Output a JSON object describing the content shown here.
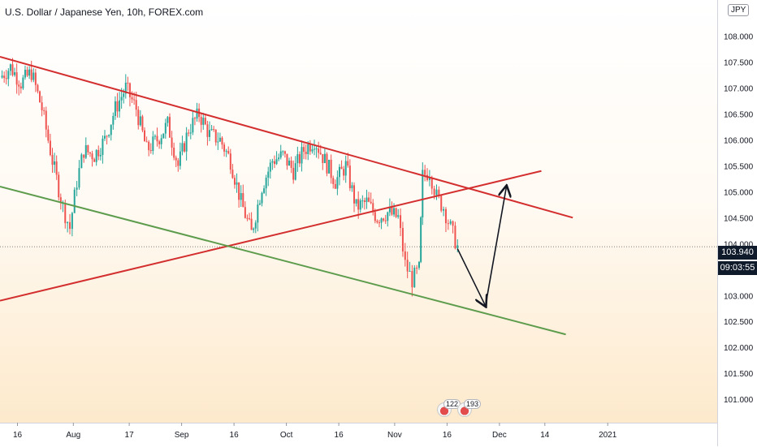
{
  "title": "U.S. Dollar / Japanese Yen, 10h, FOREX.com",
  "currency_badge": "JPY",
  "price_tag": "103.940",
  "time_tag": "09:03:55",
  "events": [
    {
      "count": "122"
    },
    {
      "count": "193"
    }
  ],
  "colors": {
    "up": "#26a69a",
    "down": "#ef5350",
    "resistance": "#d32f2f",
    "support": "#5d9c4c",
    "arrow": "#131722"
  },
  "chart_data": {
    "type": "candlestick",
    "title": "U.S. Dollar / Japanese Yen, 10h, FOREX.com",
    "ylim": [
      100.55,
      108.6
    ],
    "y_ticks": [
      101.0,
      101.5,
      102.0,
      102.5,
      103.0,
      103.5,
      104.0,
      104.5,
      105.0,
      105.5,
      106.0,
      106.5,
      107.0,
      107.5,
      108.0
    ],
    "x_ticks": [
      "16",
      "Aug",
      "17",
      "Sep",
      "16",
      "Oct",
      "16",
      "Nov",
      "16",
      "Dec",
      "14",
      "2021"
    ],
    "last_price": 103.94,
    "close_path": [
      [
        "Jul 11",
        107.2
      ],
      [
        "Jul 14",
        107.4
      ],
      [
        "Jul 17",
        107.1
      ],
      [
        "Jul 20",
        107.3
      ],
      [
        "Jul 23",
        106.6
      ],
      [
        "Jul 26",
        105.6
      ],
      [
        "Jul 29",
        104.7
      ],
      [
        "Jul 31",
        104.3
      ],
      [
        "Aug 2",
        105.2
      ],
      [
        "Aug 4",
        105.8
      ],
      [
        "Aug 7",
        105.7
      ],
      [
        "Aug 10",
        106.0
      ],
      [
        "Aug 13",
        106.6
      ],
      [
        "Aug 16",
        107.0
      ],
      [
        "Aug 19",
        106.6
      ],
      [
        "Aug 22",
        105.8
      ],
      [
        "Aug 25",
        106.0
      ],
      [
        "Aug 28",
        106.3
      ],
      [
        "Aug 31",
        105.5
      ],
      [
        "Sep 3",
        106.2
      ],
      [
        "Sep 6",
        106.5
      ],
      [
        "Sep 9",
        106.1
      ],
      [
        "Sep 12",
        106.0
      ],
      [
        "Sep 15",
        105.6
      ],
      [
        "Sep 18",
        104.8
      ],
      [
        "Sep 21",
        104.2
      ],
      [
        "Sep 24",
        105.1
      ],
      [
        "Sep 27",
        105.6
      ],
      [
        "Sep 30",
        105.7
      ],
      [
        "Oct 3",
        105.4
      ],
      [
        "Oct 6",
        105.8
      ],
      [
        "Oct 9",
        106.0
      ],
      [
        "Oct 12",
        105.6
      ],
      [
        "Oct 15",
        105.2
      ],
      [
        "Oct 18",
        105.5
      ],
      [
        "Oct 21",
        104.7
      ],
      [
        "Oct 24",
        104.8
      ],
      [
        "Oct 27",
        104.5
      ],
      [
        "Oct 30",
        104.6
      ],
      [
        "Nov 2",
        104.5
      ],
      [
        "Nov 4",
        103.6
      ],
      [
        "Nov 6",
        103.3
      ],
      [
        "Nov 8",
        103.5
      ],
      [
        "Nov 9",
        105.3
      ],
      [
        "Nov 11",
        105.4
      ],
      [
        "Nov 13",
        104.9
      ],
      [
        "Nov 15",
        104.7
      ],
      [
        "Nov 17",
        104.3
      ],
      [
        "Nov 19",
        103.94
      ]
    ],
    "trend_lines": [
      {
        "name": "upper red",
        "points": [
          [
            "Jul 11",
            107.6
          ],
          [
            "Dec 22",
            104.5
          ]
        ]
      },
      {
        "name": "middle red",
        "points": [
          [
            "Jul 11",
            102.9
          ],
          [
            "Dec 13",
            105.4
          ]
        ]
      },
      {
        "name": "lower green",
        "points": [
          [
            "Jul 11",
            105.1
          ],
          [
            "Dec 20",
            102.25
          ]
        ]
      }
    ],
    "projection_arrow": [
      [
        "Nov 19",
        103.9
      ],
      [
        "Nov 27",
        102.8
      ],
      [
        "Dec 3",
        105.1
      ]
    ],
    "grid": false
  }
}
